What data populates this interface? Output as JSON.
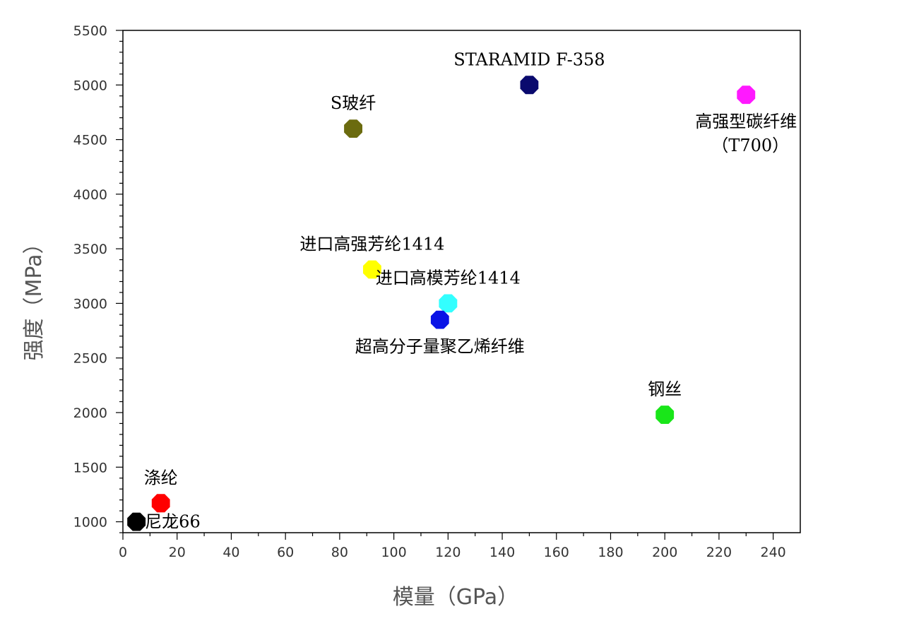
{
  "chart_data": {
    "type": "scatter",
    "title": "",
    "xlabel": "模量（GPa）",
    "ylabel": "强度（MPa）",
    "xlim": [
      0,
      250
    ],
    "ylim": [
      900,
      5500
    ],
    "x_ticks": [
      0,
      20,
      40,
      60,
      80,
      100,
      120,
      140,
      160,
      180,
      200,
      220,
      240
    ],
    "y_ticks": [
      1000,
      1500,
      2000,
      2500,
      3000,
      3500,
      4000,
      4500,
      5000,
      5500
    ],
    "grid": false,
    "legend": "none",
    "points": [
      {
        "label": "尼龙66",
        "x": 5,
        "y": 1000,
        "color": "#000000",
        "label_pos": "right"
      },
      {
        "label": "涤纶",
        "x": 14,
        "y": 1170,
        "color": "#ff0000",
        "label_pos": "above"
      },
      {
        "label": "S玻纤",
        "x": 85,
        "y": 4600,
        "color": "#6b6b0f",
        "label_pos": "above"
      },
      {
        "label": "进口高强芳纶1414",
        "x": 92,
        "y": 3310,
        "color": "#ffff00",
        "label_pos": "above"
      },
      {
        "label": "进口高模芳纶1414",
        "x": 120,
        "y": 3000,
        "color": "#33ffff",
        "label_pos": "above"
      },
      {
        "label": "超高分子量聚乙烯纤维",
        "x": 117,
        "y": 2850,
        "color": "#0a14e6",
        "label_pos": "below"
      },
      {
        "label": "STARAMID F-358",
        "x": 150,
        "y": 5000,
        "color": "#0a0a6e",
        "label_pos": "above"
      },
      {
        "label": "钢丝",
        "x": 200,
        "y": 1980,
        "color": "#19e619",
        "label_pos": "above"
      },
      {
        "label": "高强型碳纤维",
        "sublabel": "（T700）",
        "x": 230,
        "y": 4910,
        "color": "#ff19ff",
        "label_pos": "below"
      }
    ]
  }
}
